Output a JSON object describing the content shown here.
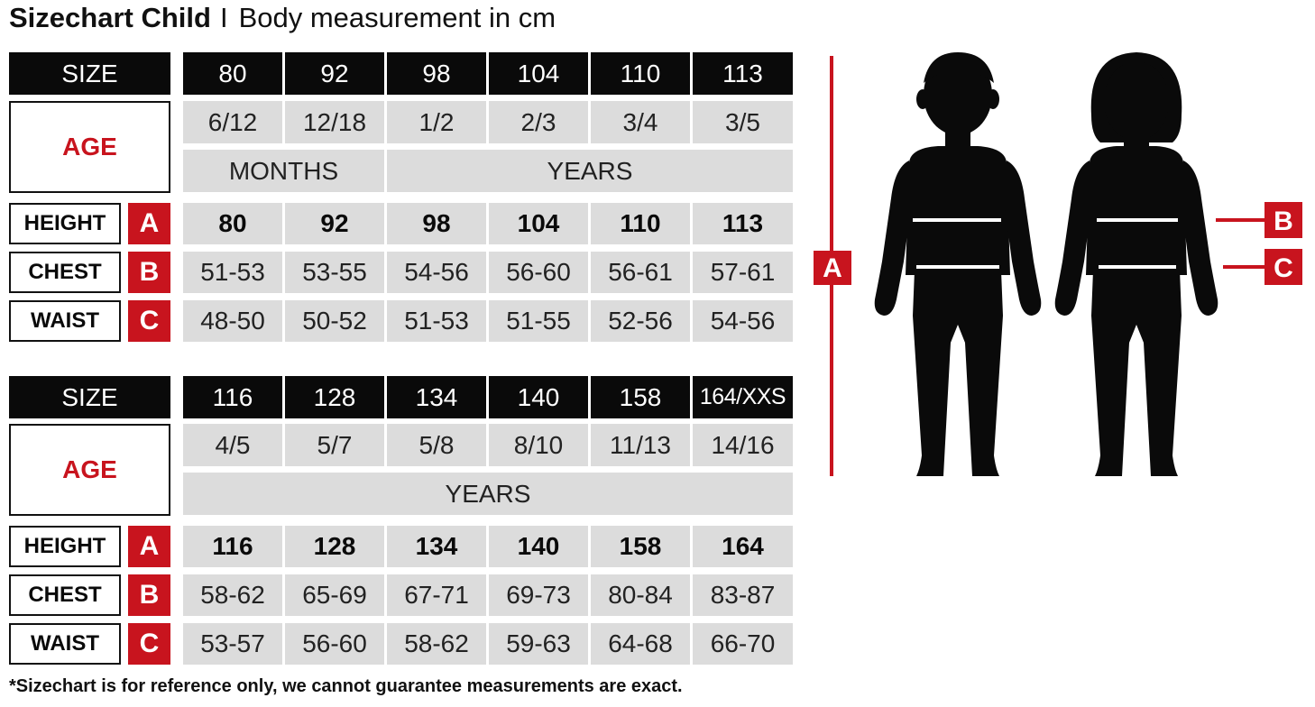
{
  "title": {
    "main": "Sizechart Child",
    "separator": "I",
    "subtitle": "Body measurement in cm"
  },
  "labels": {
    "size": "SIZE",
    "age": "AGE",
    "height": "HEIGHT",
    "chest": "CHEST",
    "waist": "WAIST",
    "badge_a": "A",
    "badge_b": "B",
    "badge_c": "C"
  },
  "table1": {
    "sizes": [
      "80",
      "92",
      "98",
      "104",
      "110",
      "113"
    ],
    "ages": [
      "6/12",
      "12/18",
      "1/2",
      "2/3",
      "3/4",
      "3/5"
    ],
    "unit_months": "MONTHS",
    "unit_years": "YEARS",
    "height": [
      "80",
      "92",
      "98",
      "104",
      "110",
      "113"
    ],
    "chest": [
      "51-53",
      "53-55",
      "54-56",
      "56-60",
      "56-61",
      "57-61"
    ],
    "waist": [
      "48-50",
      "50-52",
      "51-53",
      "51-55",
      "52-56",
      "54-56"
    ]
  },
  "table2": {
    "sizes": [
      "116",
      "128",
      "134",
      "140",
      "158",
      "164/XXS"
    ],
    "ages": [
      "4/5",
      "5/7",
      "5/8",
      "8/10",
      "11/13",
      "14/16"
    ],
    "unit_years": "YEARS",
    "height": [
      "116",
      "128",
      "134",
      "140",
      "158",
      "164"
    ],
    "chest": [
      "58-62",
      "65-69",
      "67-71",
      "69-73",
      "80-84",
      "83-87"
    ],
    "waist": [
      "53-57",
      "56-60",
      "58-62",
      "59-63",
      "64-68",
      "66-70"
    ]
  },
  "figure": {
    "marker_a": "A",
    "marker_b": "B",
    "marker_c": "C"
  },
  "footnote": "*Sizechart is for reference only, we cannot guarantee measurements are exact.",
  "colors": {
    "accent_red": "#c8141e",
    "header_black": "#0a0a0a",
    "cell_gray": "#dcdcdc"
  }
}
